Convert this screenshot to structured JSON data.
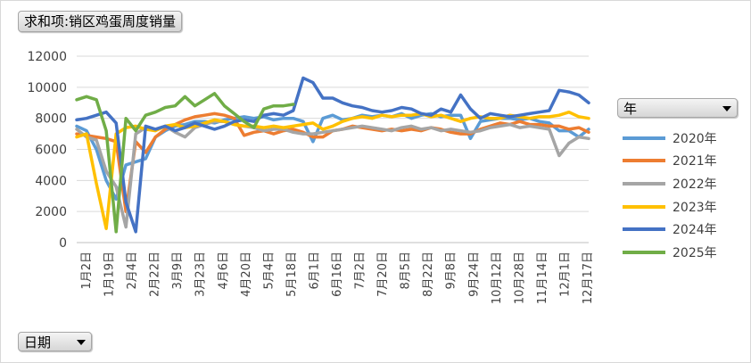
{
  "title_field": "求和项:销区鸡蛋周度销量",
  "legend_field": "年",
  "axis_field": "日期",
  "chart_data": {
    "type": "line",
    "ylim": [
      0,
      12000
    ],
    "yticks": [
      "0",
      "2000",
      "4000",
      "6000",
      "8000",
      "10000",
      "12000"
    ],
    "xtick_labels": [
      "1月2日",
      "1月19日",
      "2月4日",
      "2月22日",
      "3月9日",
      "3月23日",
      "4月6日",
      "4月20日",
      "5月4日",
      "5月18日",
      "6月1日",
      "6月16日",
      "7月2日",
      "7月20日",
      "8月5日",
      "8月22日",
      "9月8日",
      "9月24日",
      "10月12日",
      "10月28日",
      "11月14日",
      "12月1日",
      "12月17日"
    ],
    "n_points": 53,
    "series": [
      {
        "name": "2020年",
        "color": "#5B9BD5",
        "values": [
          7500,
          7200,
          6000,
          4000,
          2800,
          5000,
          5200,
          5400,
          6800,
          7200,
          7500,
          7600,
          7800,
          7800,
          7700,
          7900,
          8000,
          8100,
          8000,
          8100,
          7900,
          8000,
          8000,
          7800,
          6500,
          8000,
          8200,
          7900,
          8000,
          8200,
          8100,
          8200,
          8100,
          8300,
          8000,
          8200,
          8300,
          8100,
          8200,
          8200,
          6700,
          7800,
          7900,
          8000,
          8000,
          7900,
          8000,
          7800,
          7700,
          7200,
          7200,
          6800,
          7300
        ]
      },
      {
        "name": "2021年",
        "color": "#ED7D31",
        "values": [
          7000,
          6900,
          6800,
          6700,
          6500,
          2000,
          6500,
          5800,
          6800,
          7300,
          7600,
          7900,
          8100,
          8200,
          8300,
          8200,
          8000,
          6900,
          7100,
          7200,
          7000,
          7200,
          7300,
          7100,
          6800,
          6800,
          7200,
          7300,
          7500,
          7400,
          7300,
          7200,
          7300,
          7200,
          7300,
          7200,
          7400,
          7300,
          7100,
          7000,
          7000,
          7300,
          7500,
          7700,
          7600,
          7800,
          7600,
          7600,
          7500,
          7500,
          7300,
          7400,
          7100
        ]
      },
      {
        "name": "2022年",
        "color": "#A5A5A5",
        "values": [
          7300,
          6800,
          6600,
          4600,
          3600,
          1000,
          7000,
          7400,
          7300,
          7500,
          7100,
          6800,
          7400,
          7600,
          7800,
          7800,
          7600,
          7500,
          7400,
          7200,
          7300,
          7300,
          7100,
          7000,
          7000,
          7100,
          7200,
          7300,
          7400,
          7500,
          7400,
          7300,
          7200,
          7400,
          7500,
          7300,
          7400,
          7200,
          7300,
          7200,
          7100,
          7200,
          7400,
          7500,
          7600,
          7400,
          7500,
          7400,
          7300,
          5600,
          6400,
          6800,
          6700
        ]
      },
      {
        "name": "2023年",
        "color": "#FFC000",
        "values": [
          6800,
          7000,
          3800,
          900,
          7000,
          7400,
          7500,
          7300,
          7200,
          7500,
          7600,
          7400,
          7500,
          7700,
          7900,
          7800,
          7600,
          7500,
          7500,
          7400,
          7500,
          7400,
          7500,
          7600,
          7700,
          7300,
          7500,
          7800,
          8000,
          8100,
          8000,
          8200,
          8100,
          8200,
          8200,
          8300,
          8100,
          8200,
          8000,
          7800,
          8000,
          8100,
          8000,
          8000,
          8200,
          8100,
          8000,
          8100,
          8100,
          8200,
          8400,
          8100,
          8000
        ]
      },
      {
        "name": "2024年",
        "color": "#4472C4",
        "values": [
          7900,
          8000,
          8200,
          8400,
          7700,
          2600,
          700,
          7500,
          7300,
          7500,
          7200,
          7400,
          7700,
          7500,
          7300,
          7500,
          7800,
          7900,
          7800,
          8200,
          8300,
          8200,
          8500,
          10600,
          10300,
          9300,
          9300,
          9000,
          8800,
          8700,
          8500,
          8400,
          8500,
          8700,
          8600,
          8300,
          8200,
          8600,
          8400,
          9500,
          8600,
          8000,
          8300,
          8200,
          8100,
          8200,
          8300,
          8400,
          8500,
          9800,
          9700,
          9500,
          9000
        ]
      },
      {
        "name": "2025年",
        "color": "#70AD47",
        "values": [
          9200,
          9400,
          9200,
          7200,
          700,
          8000,
          7200,
          8200,
          8400,
          8700,
          8800,
          9400,
          8800,
          9200,
          9600,
          8800,
          8300,
          7800,
          7400,
          8600,
          8800,
          8800,
          8900
        ]
      }
    ]
  }
}
